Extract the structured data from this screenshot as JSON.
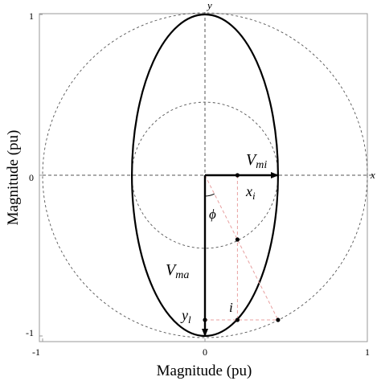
{
  "x_axis": {
    "title": "Magnitude (pu)",
    "ticks": [
      -1,
      0,
      1
    ],
    "tick_labels": [
      "-1",
      "0",
      "1"
    ]
  },
  "y_axis": {
    "title": "Magnitude (pu)",
    "ticks": [
      -1,
      0,
      1
    ],
    "tick_labels": [
      "-1",
      "0",
      "1"
    ]
  },
  "axis_labels": {
    "x": "x",
    "y": "y"
  },
  "annotations": {
    "vmi": {
      "base": "V",
      "sub": "mi"
    },
    "vma": {
      "base": "V",
      "sub": "ma"
    },
    "xi": {
      "base": "x",
      "sub": "i"
    },
    "yi": {
      "base": "y",
      "sub": "l"
    },
    "phi": "ϕ",
    "point_i": "i"
  },
  "shapes": {
    "ellipse": {
      "semi_x": 0.45,
      "semi_y": 1.0
    },
    "outer_circle_radius": 1.0,
    "inner_circle_radius": 0.45,
    "point_on_inner_circle": [
      0.2,
      -0.4
    ],
    "point_on_outer_circle": [
      0.45,
      -0.9
    ],
    "point_i": [
      0.2,
      -0.9
    ],
    "xi_point": [
      0.2,
      0
    ]
  },
  "colors": {
    "ellipse": "#000000",
    "circles": "#555555",
    "construction": "#e8a0a0",
    "arrows": "#000000"
  }
}
